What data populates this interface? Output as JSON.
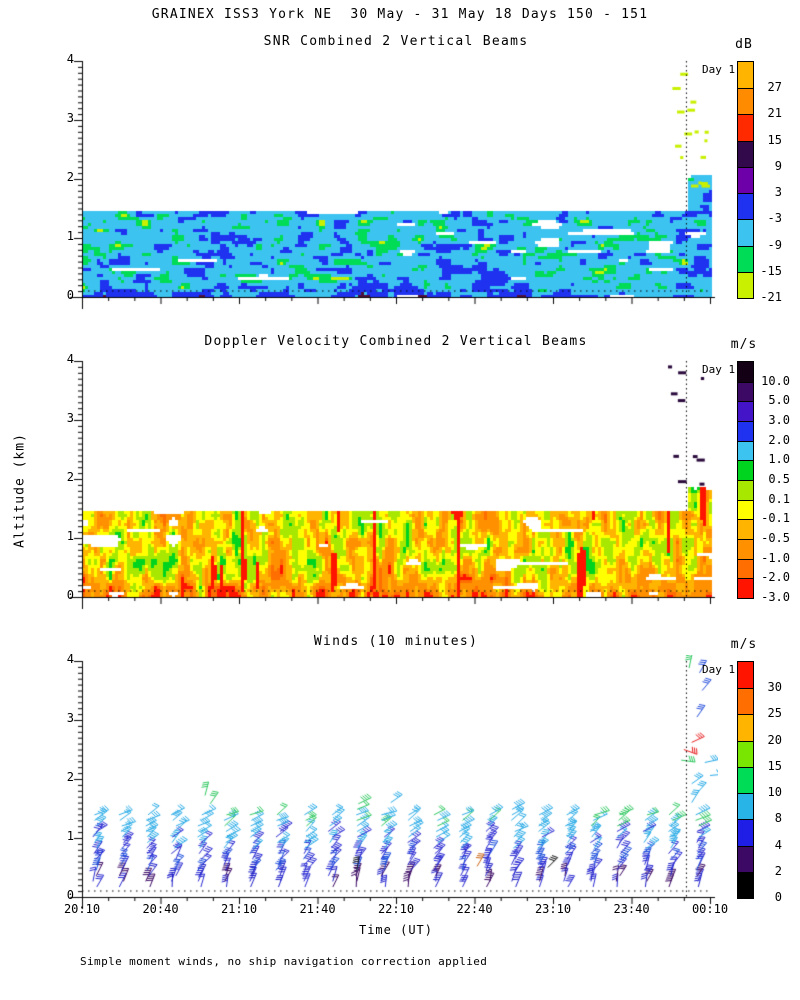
{
  "figure": {
    "title": "GRAINEX ISS3 York NE  30 May - 31 May 18 Days 150 - 151",
    "caption": "Simple moment winds, no ship navigation correction applied",
    "xlabel": "Time (UT)",
    "ylabel": "Altitude (km)",
    "day_marker": "Day 1",
    "x_tick_labels": [
      "20:10",
      "20:40",
      "21:10",
      "21:40",
      "22:10",
      "22:40",
      "23:10",
      "23:40",
      "00:10"
    ],
    "y_tick_labels": [
      "4",
      "3",
      "2",
      "1",
      "0"
    ],
    "x_minor_tick_minutes": 10,
    "y_minor_tick_km": 0.1
  },
  "chart_data": [
    {
      "type": "heatmap",
      "title": "SNR Combined 2 Vertical Beams",
      "xlabel": "Time (UT)",
      "ylabel": "Altitude (km)",
      "ylim_km": [
        0,
        4
      ],
      "x_range_minutes": 240,
      "x_ticks": [
        "20:10",
        "20:40",
        "21:10",
        "21:40",
        "22:10",
        "22:40",
        "23:10",
        "23:40",
        "00:10"
      ],
      "y_ticks": [
        4,
        3,
        2,
        1,
        0
      ],
      "day_line_minute": 231,
      "colorbar": {
        "units": "dB",
        "labels": [
          "27",
          "21",
          "15",
          "9",
          "3",
          "-3",
          "-9",
          "-15",
          "-21"
        ],
        "colors_top_to_bottom": [
          "#FFB400",
          "#FF8C00",
          "#FF2A00",
          "#32094B",
          "#6E00AA",
          "#1E32F0",
          "#3CC3F0",
          "#00DC55",
          "#C8F000"
        ]
      },
      "field_estimate": {
        "seed": 7,
        "layer_top_km": 1.45,
        "right_top_km": 2.15,
        "bias": 0.25,
        "bias_z": 0.16,
        "palette": [
          {
            "t": 0.045,
            "c": "#FFFFFF"
          },
          {
            "t": 0.175,
            "c": "#C8F000"
          },
          {
            "t": 0.33,
            "c": "#00DC55"
          },
          {
            "t": 0.655,
            "c": "#3CC3F0"
          },
          {
            "t": 0.945,
            "c": "#1E32F0"
          },
          {
            "t": 0.97,
            "c": "#3CC3F0"
          },
          {
            "t": 9,
            "c": "#50103C"
          }
        ],
        "noise": {
          "sx1": 20,
          "sy1": 8,
          "sx2": 7,
          "sy2": 4,
          "w1": 0.62
        },
        "holes": {
          "scale_x": 36,
          "scale_y": 9,
          "threshold": 0.84,
          "max_z": 1.3
        },
        "specks": {
          "count": 16,
          "minute_range": [
            222,
            239
          ],
          "alt_range": [
            1.55,
            4.02
          ],
          "color": "#C8F000"
        }
      }
    },
    {
      "type": "heatmap",
      "title": "Doppler Velocity Combined 2 Vertical Beams",
      "xlabel": "Time (UT)",
      "ylabel": "Altitude (km)",
      "ylim_km": [
        0,
        4
      ],
      "x_range_minutes": 240,
      "x_ticks": [
        "20:10",
        "20:40",
        "21:10",
        "21:40",
        "22:10",
        "22:40",
        "23:10",
        "23:40",
        "00:10"
      ],
      "y_ticks": [
        4,
        3,
        2,
        1,
        0
      ],
      "day_line_minute": 231,
      "colorbar": {
        "units": "m/s",
        "labels": [
          "10.0",
          "5.0",
          "3.0",
          "2.0",
          "1.0",
          "0.5",
          "0.1",
          "-0.1",
          "-0.5",
          "-1.0",
          "-2.0",
          "-3.0"
        ],
        "colors_top_to_bottom": [
          "#140014",
          "#3C0A64",
          "#4414C8",
          "#1E32F0",
          "#3CC3F0",
          "#00D41E",
          "#A8E800",
          "#FFFF00",
          "#FFB400",
          "#FF9100",
          "#FF6E00",
          "#FF1400"
        ]
      },
      "field_estimate": {
        "seed": 19,
        "layer_top_km": 1.45,
        "right_top_km": 1.95,
        "bias": 0.3,
        "bias_z": 0.55,
        "palette": [
          {
            "t": 0.02,
            "c": "#1E32F0"
          },
          {
            "t": 0.055,
            "c": "#3CC3F0"
          },
          {
            "t": 0.115,
            "c": "#FFFFFF"
          },
          {
            "t": 0.27,
            "c": "#00D41E"
          },
          {
            "t": 0.43,
            "c": "#A8E800"
          },
          {
            "t": 0.55,
            "c": "#FFFF00"
          },
          {
            "t": 0.68,
            "c": "#FFB400"
          },
          {
            "t": 0.87,
            "c": "#FF9100"
          },
          {
            "t": 0.94,
            "c": "#FF6E00"
          },
          {
            "t": 9,
            "c": "#FF1400"
          }
        ],
        "noise": {
          "sx1": 9,
          "sy1": 26,
          "sx2": 4.5,
          "sy2": 9,
          "w1": 0.6
        },
        "holes": {
          "scale_x": 30,
          "scale_y": 8,
          "threshold": 0.86,
          "max_z": 1.35
        },
        "streaks": {
          "scale_x": 5,
          "scale_y": 70,
          "threshold": 0.875,
          "color": "#FF1400"
        },
        "specks": {
          "count": 10,
          "minute_range": [
            220,
            238
          ],
          "alt_range": [
            1.8,
            4.0
          ],
          "color": "#2A0A3C"
        }
      }
    },
    {
      "type": "windbarb",
      "title": "Winds (10 minutes)",
      "xlabel": "Time (UT)",
      "ylabel": "Altitude (km)",
      "ylim_km": [
        0,
        4
      ],
      "x_range_minutes": 240,
      "x_ticks": [
        "20:10",
        "20:40",
        "21:10",
        "21:40",
        "22:10",
        "22:40",
        "23:10",
        "23:40",
        "00:10"
      ],
      "y_ticks": [
        4,
        3,
        2,
        1,
        0
      ],
      "day_line_minute": 231,
      "colorbar": {
        "units": "m/s",
        "labels": [
          "30",
          "25",
          "20",
          "15",
          "10",
          "8",
          "4",
          "2",
          "0"
        ],
        "colors_top_to_bottom": [
          "#FF1400",
          "#FF6E00",
          "#FFB400",
          "#78E600",
          "#00DC55",
          "#28B4E6",
          "#1E1EE6",
          "#3C0A64",
          "#000000"
        ]
      },
      "barbs_estimate": {
        "seed": 31,
        "columns": 24,
        "col_minute0": 5,
        "col_minute_step": 10,
        "alt_bottom_km": 0.17,
        "alt_step_km": 0.094,
        "alt_top_base_km": 1.44,
        "staff_len": 14,
        "colors_by_alt": [
          {
            "max_z": 0.45,
            "colors": [
              "#1E1EC8",
              "#3C0A64",
              "#2A2AD2"
            ]
          },
          {
            "max_z": 0.8,
            "colors": [
              "#2222D0",
              "#2A2AD2",
              "#1E50DC"
            ]
          },
          {
            "max_z": 1.15,
            "colors": [
              "#28AAE6",
              "#2A2AD2",
              "#28AAE6"
            ]
          },
          {
            "max_z": 9,
            "colors": [
              "#28AAE6",
              "#30C860",
              "#28AAE6"
            ]
          }
        ],
        "extra_barbs": [
          {
            "minute": 47,
            "alt": 1.72,
            "color": "#30C860",
            "angle": 75
          },
          {
            "minute": 49,
            "alt": 1.58,
            "color": "#30C860",
            "angle": 55
          },
          {
            "minute": 118,
            "alt": 1.6,
            "color": "#28AAE6",
            "angle": 35
          },
          {
            "minute": 105,
            "alt": 0.45,
            "color": "#202020",
            "angle": 80
          },
          {
            "minute": 151,
            "alt": 0.52,
            "color": "#C86414",
            "angle": 60
          },
          {
            "minute": 178,
            "alt": 0.5,
            "color": "#101010",
            "angle": 45
          },
          {
            "minute": 232,
            "alt": 3.88,
            "color": "#30C860",
            "angle": 78
          },
          {
            "minute": 236,
            "alt": 3.8,
            "color": "#2850DC",
            "angle": 60
          },
          {
            "minute": 237,
            "alt": 3.5,
            "color": "#2850DC",
            "angle": 50
          },
          {
            "minute": 235,
            "alt": 3.05,
            "color": "#2850DC",
            "angle": 55
          },
          {
            "minute": 233,
            "alt": 2.62,
            "color": "#E62020",
            "angle": 25
          },
          {
            "minute": 230,
            "alt": 2.5,
            "color": "#E62020",
            "angle": -20
          },
          {
            "minute": 229,
            "alt": 2.32,
            "color": "#30C860",
            "angle": -8
          },
          {
            "minute": 238,
            "alt": 2.28,
            "color": "#28AAE6",
            "angle": 12
          },
          {
            "minute": 240,
            "alt": 2.06,
            "color": "#28AAE6",
            "angle": 5
          },
          {
            "minute": 233,
            "alt": 1.92,
            "color": "#28AAE6",
            "angle": 35
          },
          {
            "minute": 235,
            "alt": 1.76,
            "color": "#28AAE6",
            "angle": 48
          },
          {
            "minute": 233,
            "alt": 1.6,
            "color": "#28AAE6",
            "angle": 58
          }
        ]
      }
    }
  ]
}
